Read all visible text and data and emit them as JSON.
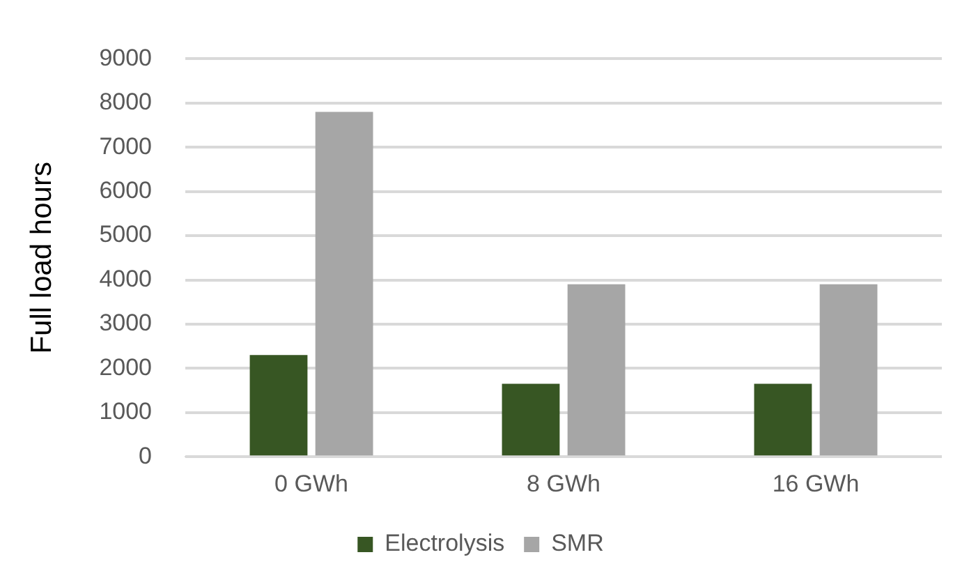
{
  "chart_data": {
    "type": "bar",
    "ylabel": "Full load hours",
    "categories": [
      "0 GWh",
      "8 GWh",
      "16 GWh"
    ],
    "series": [
      {
        "name": "Electrolysis",
        "color": "#375623",
        "values": [
          2300,
          1650,
          1650
        ]
      },
      {
        "name": "SMR",
        "color": "#a6a6a6",
        "values": [
          7800,
          3900,
          3900
        ]
      }
    ],
    "ylim": [
      0,
      9000
    ],
    "yticks": [
      0,
      1000,
      2000,
      3000,
      4000,
      5000,
      6000,
      7000,
      8000,
      9000
    ],
    "grid": "y",
    "legend": "bottom"
  }
}
